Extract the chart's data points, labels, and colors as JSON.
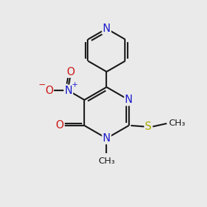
{
  "bg_color": "#eaeaea",
  "bond_color": "#1a1a1a",
  "bond_width": 1.6,
  "atom_colors": {
    "N": "#1a1acc",
    "O": "#cc1a1a",
    "S": "#aaaa00",
    "C": "#1a1a1a"
  },
  "font_size_atom": 11,
  "font_size_small": 9.5
}
